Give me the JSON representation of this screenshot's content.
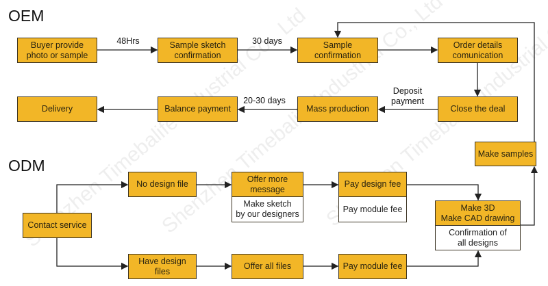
{
  "watermark": "Shenzhen Timebalife Industrial Co., Ltd",
  "colors": {
    "box_fill": "#F2B627",
    "border": "#3a3222",
    "line": "#222222"
  },
  "oem": {
    "title": "OEM",
    "steps": [
      "Buyer provide\nphoto or sample",
      "Sample sketch\nconfirmation",
      "Sample\nconfirmation",
      "Order details\ncomunication",
      "Close the deal",
      "Mass production",
      "Balance payment",
      "Delivery"
    ],
    "labels": {
      "l48": "48Hrs",
      "l30": "30 days",
      "deposit": "Deposit\npayment",
      "l2030": "20-30 days"
    }
  },
  "odm": {
    "title": "ODM",
    "contact": "Contact service",
    "no_design": "No design file",
    "have_design": "Have design\nfiles",
    "offer_more": "Offer more\nmessage",
    "make_sketch": "Make sketch\nby our designers",
    "offer_all": "Offer all files",
    "pay_design": "Pay design fee",
    "pay_module_sub": "Pay module fee",
    "pay_module": "Pay module fee",
    "make_3d": "Make 3D\nMake CAD drawing",
    "confirm_designs": "Confirmation of\nall designs",
    "make_samples": "Make samples"
  }
}
